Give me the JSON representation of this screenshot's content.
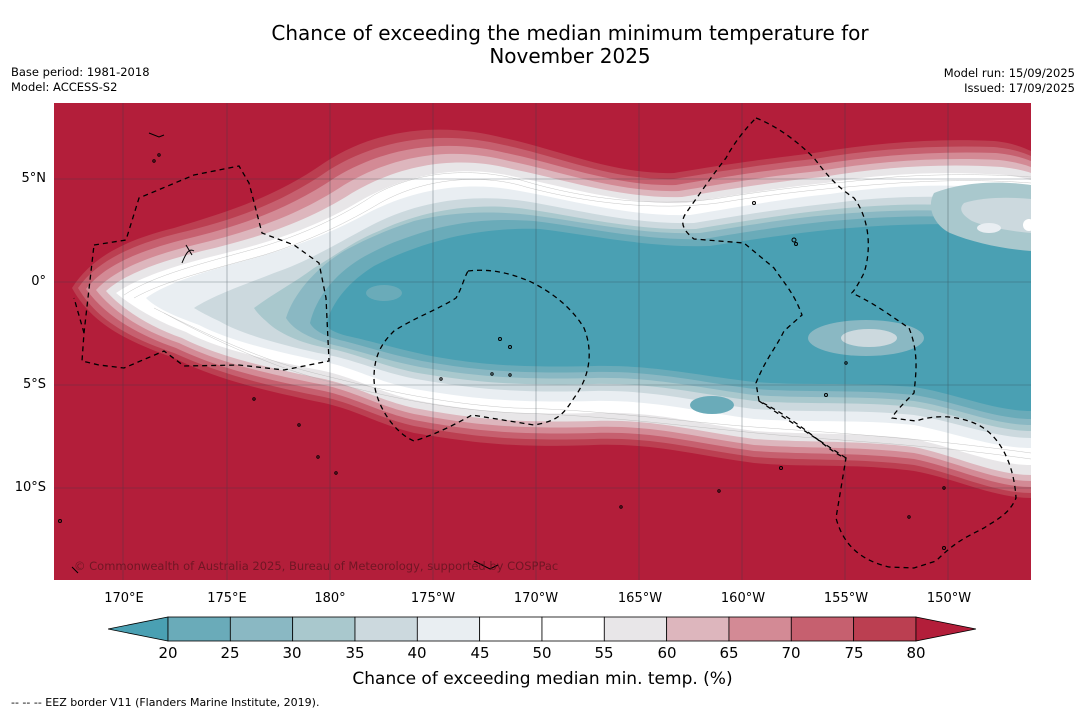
{
  "title_line1": "Chance of exceeding the median minimum temperature for",
  "title_line2": "November 2025",
  "meta": {
    "base_period": "Base period: 1981-2018",
    "model": "Model: ACCESS-S2",
    "model_run": "Model run: 15/09/2025",
    "issued": "Issued: 17/09/2025"
  },
  "copyright": "© Commonwealth of Australia 2025, Bureau of Meteorology, supported by COSPPac",
  "latitude_ticks": [
    "5°N",
    "0°",
    "5°S",
    "10°S"
  ],
  "longitude_ticks": [
    "170°E",
    "175°E",
    "180°",
    "175°W",
    "170°W",
    "165°W",
    "160°W",
    "155°W",
    "150°W"
  ],
  "colorbar": {
    "label": "Chance of exceeding median min. temp. (%)",
    "ticks": [
      "20",
      "25",
      "30",
      "35",
      "40",
      "45",
      "50",
      "55",
      "60",
      "65",
      "70",
      "75",
      "80"
    ],
    "colors": [
      "#4aa0b3",
      "#6aabb9",
      "#8ab8c3",
      "#a9c8cd",
      "#ccd9de",
      "#e9eef2",
      "#ffffff",
      "#ffffff",
      "#e8e6e8",
      "#ddb6bd",
      "#d38a95",
      "#c6606f",
      "#bb3f51",
      "#b31e3a"
    ]
  },
  "legend_note": "--  --  -- EEZ border V11 (Flanders Marine Institute, 2019)."
}
